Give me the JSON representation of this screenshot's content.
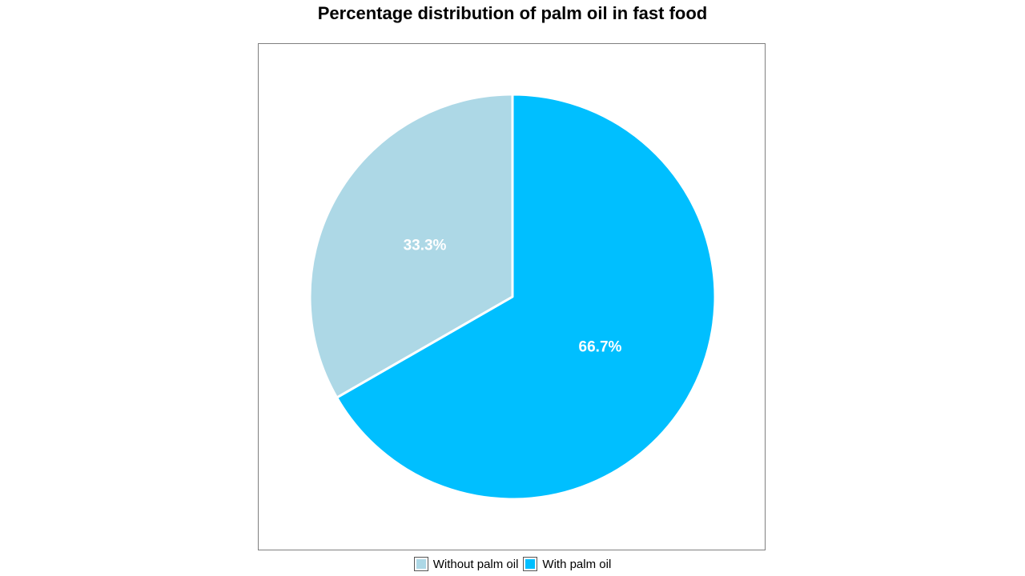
{
  "chart_data": {
    "type": "pie",
    "title": "Percentage distribution of palm oil in fast food",
    "slices": [
      {
        "name": "Without palm oil",
        "value": 33.3,
        "label": "33.3%",
        "color": "#add8e6"
      },
      {
        "name": "With palm oil",
        "value": 66.7,
        "label": "66.7%",
        "color": "#00bfff"
      }
    ],
    "start_angle_deg": 0,
    "direction": "counterclockwise",
    "legend_position": "bottom",
    "slice_border_color": "#ffffff",
    "frame_color": "#7f7f7f"
  }
}
